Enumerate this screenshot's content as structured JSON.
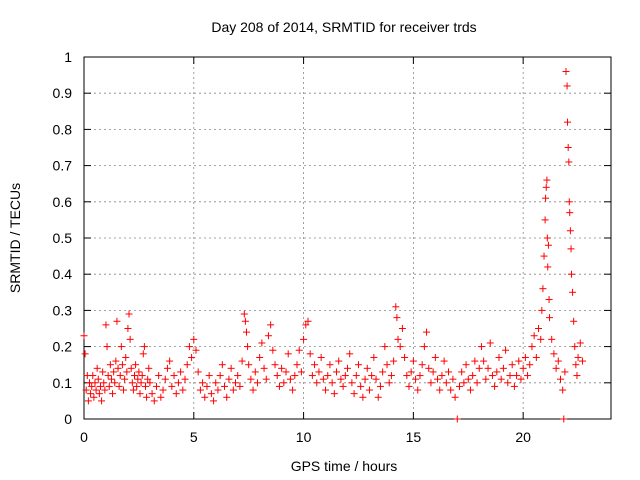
{
  "chart_data": {
    "type": "scatter",
    "title": "Day 208 of 2014, SRMTID for receiver trds",
    "xlabel": "GPS time / hours",
    "ylabel": "SRMTID / TECUs",
    "xlim": [
      0,
      24
    ],
    "ylim": [
      0,
      1
    ],
    "xticks": [
      0,
      5,
      10,
      15,
      20
    ],
    "xtick_labels": [
      "0",
      "5",
      "10",
      "15",
      "20"
    ],
    "yticks": [
      0,
      0.1,
      0.2,
      0.3,
      0.4,
      0.5,
      0.6,
      0.7,
      0.8,
      0.9,
      1
    ],
    "ytick_labels": [
      "0",
      "0.1",
      "0.2",
      "0.3",
      "0.4",
      "0.5",
      "0.6",
      "0.7",
      "0.8",
      "0.9",
      "1"
    ],
    "grid": true,
    "marker": "+",
    "color": "#ff0000",
    "series": [
      {
        "name": "SRMTID",
        "points": [
          [
            0.0,
            0.23
          ],
          [
            0.05,
            0.18
          ],
          [
            0.1,
            0.08
          ],
          [
            0.15,
            0.12
          ],
          [
            0.2,
            0.05
          ],
          [
            0.25,
            0.1
          ],
          [
            0.3,
            0.07
          ],
          [
            0.35,
            0.09
          ],
          [
            0.4,
            0.12
          ],
          [
            0.45,
            0.06
          ],
          [
            0.5,
            0.1
          ],
          [
            0.55,
            0.08
          ],
          [
            0.6,
            0.14
          ],
          [
            0.65,
            0.11
          ],
          [
            0.7,
            0.07
          ],
          [
            0.75,
            0.09
          ],
          [
            0.8,
            0.05
          ],
          [
            0.85,
            0.13
          ],
          [
            0.9,
            0.1
          ],
          [
            0.95,
            0.08
          ],
          [
            1.0,
            0.26
          ],
          [
            1.05,
            0.2
          ],
          [
            1.1,
            0.12
          ],
          [
            1.15,
            0.09
          ],
          [
            1.2,
            0.15
          ],
          [
            1.25,
            0.11
          ],
          [
            1.3,
            0.07
          ],
          [
            1.35,
            0.13
          ],
          [
            1.4,
            0.1
          ],
          [
            1.45,
            0.16
          ],
          [
            1.5,
            0.27
          ],
          [
            1.55,
            0.14
          ],
          [
            1.6,
            0.09
          ],
          [
            1.65,
            0.12
          ],
          [
            1.7,
            0.2
          ],
          [
            1.75,
            0.15
          ],
          [
            1.8,
            0.08
          ],
          [
            1.85,
            0.11
          ],
          [
            1.9,
            0.17
          ],
          [
            1.95,
            0.13
          ],
          [
            2.0,
            0.25
          ],
          [
            2.05,
            0.29
          ],
          [
            2.1,
            0.22
          ],
          [
            2.15,
            0.14
          ],
          [
            2.2,
            0.1
          ],
          [
            2.25,
            0.08
          ],
          [
            2.3,
            0.12
          ],
          [
            2.35,
            0.15
          ],
          [
            2.4,
            0.09
          ],
          [
            2.45,
            0.11
          ],
          [
            2.5,
            0.13
          ],
          [
            2.55,
            0.07
          ],
          [
            2.6,
            0.1
          ],
          [
            2.65,
            0.12
          ],
          [
            2.7,
            0.18
          ],
          [
            2.75,
            0.2
          ],
          [
            2.8,
            0.09
          ],
          [
            2.85,
            0.06
          ],
          [
            2.9,
            0.11
          ],
          [
            2.95,
            0.14
          ],
          [
            3.0,
            0.1
          ],
          [
            3.1,
            0.07
          ],
          [
            3.2,
            0.05
          ],
          [
            3.3,
            0.09
          ],
          [
            3.4,
            0.12
          ],
          [
            3.5,
            0.06
          ],
          [
            3.6,
            0.08
          ],
          [
            3.7,
            0.11
          ],
          [
            3.8,
            0.14
          ],
          [
            3.9,
            0.16
          ],
          [
            4.0,
            0.09
          ],
          [
            4.1,
            0.12
          ],
          [
            4.2,
            0.07
          ],
          [
            4.3,
            0.1
          ],
          [
            4.4,
            0.13
          ],
          [
            4.5,
            0.08
          ],
          [
            4.6,
            0.11
          ],
          [
            4.7,
            0.15
          ],
          [
            4.8,
            0.2
          ],
          [
            4.9,
            0.17
          ],
          [
            5.0,
            0.22
          ],
          [
            5.1,
            0.19
          ],
          [
            5.2,
            0.13
          ],
          [
            5.3,
            0.08
          ],
          [
            5.4,
            0.1
          ],
          [
            5.5,
            0.06
          ],
          [
            5.6,
            0.09
          ],
          [
            5.7,
            0.12
          ],
          [
            5.8,
            0.07
          ],
          [
            5.9,
            0.05
          ],
          [
            6.0,
            0.1
          ],
          [
            6.1,
            0.08
          ],
          [
            6.2,
            0.12
          ],
          [
            6.3,
            0.15
          ],
          [
            6.4,
            0.09
          ],
          [
            6.5,
            0.06
          ],
          [
            6.6,
            0.11
          ],
          [
            6.7,
            0.14
          ],
          [
            6.8,
            0.08
          ],
          [
            6.9,
            0.1
          ],
          [
            7.0,
            0.12
          ],
          [
            7.1,
            0.09
          ],
          [
            7.2,
            0.16
          ],
          [
            7.3,
            0.29
          ],
          [
            7.35,
            0.27
          ],
          [
            7.4,
            0.24
          ],
          [
            7.45,
            0.2
          ],
          [
            7.5,
            0.15
          ],
          [
            7.6,
            0.11
          ],
          [
            7.7,
            0.08
          ],
          [
            7.8,
            0.13
          ],
          [
            7.9,
            0.1
          ],
          [
            8.0,
            0.17
          ],
          [
            8.1,
            0.21
          ],
          [
            8.2,
            0.14
          ],
          [
            8.3,
            0.11
          ],
          [
            8.4,
            0.23
          ],
          [
            8.5,
            0.26
          ],
          [
            8.6,
            0.19
          ],
          [
            8.7,
            0.15
          ],
          [
            8.8,
            0.12
          ],
          [
            8.9,
            0.09
          ],
          [
            9.0,
            0.14
          ],
          [
            9.1,
            0.1
          ],
          [
            9.2,
            0.13
          ],
          [
            9.3,
            0.18
          ],
          [
            9.4,
            0.11
          ],
          [
            9.5,
            0.08
          ],
          [
            9.6,
            0.12
          ],
          [
            9.7,
            0.15
          ],
          [
            9.8,
            0.19
          ],
          [
            9.9,
            0.13
          ],
          [
            10.0,
            0.22
          ],
          [
            10.1,
            0.26
          ],
          [
            10.2,
            0.27
          ],
          [
            10.3,
            0.18
          ],
          [
            10.4,
            0.12
          ],
          [
            10.5,
            0.15
          ],
          [
            10.6,
            0.1
          ],
          [
            10.7,
            0.13
          ],
          [
            10.8,
            0.17
          ],
          [
            10.9,
            0.11
          ],
          [
            11.0,
            0.08
          ],
          [
            11.1,
            0.12
          ],
          [
            11.2,
            0.15
          ],
          [
            11.3,
            0.1
          ],
          [
            11.4,
            0.07
          ],
          [
            11.5,
            0.13
          ],
          [
            11.6,
            0.16
          ],
          [
            11.7,
            0.11
          ],
          [
            11.8,
            0.09
          ],
          [
            11.9,
            0.12
          ],
          [
            12.0,
            0.14
          ],
          [
            12.1,
            0.18
          ],
          [
            12.2,
            0.1
          ],
          [
            12.3,
            0.07
          ],
          [
            12.4,
            0.12
          ],
          [
            12.5,
            0.15
          ],
          [
            12.6,
            0.09
          ],
          [
            12.7,
            0.06
          ],
          [
            12.8,
            0.11
          ],
          [
            12.9,
            0.14
          ],
          [
            13.0,
            0.08
          ],
          [
            13.1,
            0.12
          ],
          [
            13.2,
            0.17
          ],
          [
            13.3,
            0.11
          ],
          [
            13.4,
            0.06
          ],
          [
            13.5,
            0.09
          ],
          [
            13.6,
            0.13
          ],
          [
            13.7,
            0.2
          ],
          [
            13.8,
            0.15
          ],
          [
            13.9,
            0.1
          ],
          [
            14.0,
            0.12
          ],
          [
            14.1,
            0.16
          ],
          [
            14.2,
            0.31
          ],
          [
            14.25,
            0.28
          ],
          [
            14.3,
            0.22
          ],
          [
            14.4,
            0.2
          ],
          [
            14.5,
            0.25
          ],
          [
            14.6,
            0.17
          ],
          [
            14.7,
            0.12
          ],
          [
            14.8,
            0.09
          ],
          [
            14.9,
            0.13
          ],
          [
            15.0,
            0.16
          ],
          [
            15.1,
            0.11
          ],
          [
            15.2,
            0.08
          ],
          [
            15.3,
            0.12
          ],
          [
            15.4,
            0.15
          ],
          [
            15.5,
            0.2
          ],
          [
            15.6,
            0.24
          ],
          [
            15.7,
            0.14
          ],
          [
            15.8,
            0.1
          ],
          [
            15.9,
            0.13
          ],
          [
            16.0,
            0.17
          ],
          [
            16.1,
            0.11
          ],
          [
            16.2,
            0.08
          ],
          [
            16.3,
            0.12
          ],
          [
            16.4,
            0.16
          ],
          [
            16.5,
            0.1
          ],
          [
            16.6,
            0.13
          ],
          [
            16.7,
            0.08
          ],
          [
            16.8,
            0.11
          ],
          [
            16.9,
            0.06
          ],
          [
            17.0,
            0.0
          ],
          [
            17.1,
            0.09
          ],
          [
            17.2,
            0.13
          ],
          [
            17.3,
            0.1
          ],
          [
            17.4,
            0.15
          ],
          [
            17.5,
            0.11
          ],
          [
            17.6,
            0.08
          ],
          [
            17.7,
            0.12
          ],
          [
            17.8,
            0.16
          ],
          [
            17.9,
            0.1
          ],
          [
            18.0,
            0.14
          ],
          [
            18.1,
            0.2
          ],
          [
            18.2,
            0.16
          ],
          [
            18.3,
            0.11
          ],
          [
            18.4,
            0.14
          ],
          [
            18.5,
            0.21
          ],
          [
            18.6,
            0.12
          ],
          [
            18.7,
            0.09
          ],
          [
            18.8,
            0.13
          ],
          [
            18.9,
            0.17
          ],
          [
            19.0,
            0.11
          ],
          [
            19.1,
            0.14
          ],
          [
            19.2,
            0.19
          ],
          [
            19.3,
            0.1
          ],
          [
            19.4,
            0.12
          ],
          [
            19.5,
            0.15
          ],
          [
            19.6,
            0.09
          ],
          [
            19.7,
            0.12
          ],
          [
            19.8,
            0.16
          ],
          [
            19.9,
            0.11
          ],
          [
            20.0,
            0.14
          ],
          [
            20.1,
            0.17
          ],
          [
            20.2,
            0.12
          ],
          [
            20.3,
            0.15
          ],
          [
            20.4,
            0.2
          ],
          [
            20.5,
            0.23
          ],
          [
            20.6,
            0.17
          ],
          [
            20.7,
            0.25
          ],
          [
            20.8,
            0.22
          ],
          [
            20.85,
            0.3
          ],
          [
            20.9,
            0.36
          ],
          [
            20.95,
            0.45
          ],
          [
            21.0,
            0.55
          ],
          [
            21.02,
            0.61
          ],
          [
            21.05,
            0.64
          ],
          [
            21.08,
            0.66
          ],
          [
            21.1,
            0.5
          ],
          [
            21.12,
            0.42
          ],
          [
            21.15,
            0.48
          ],
          [
            21.18,
            0.33
          ],
          [
            21.2,
            0.28
          ],
          [
            21.3,
            0.22
          ],
          [
            21.4,
            0.18
          ],
          [
            21.5,
            0.14
          ],
          [
            21.6,
            0.16
          ],
          [
            21.7,
            0.11
          ],
          [
            21.8,
            0.08
          ],
          [
            21.85,
            0.0
          ],
          [
            21.9,
            0.13
          ],
          [
            21.95,
            0.96
          ],
          [
            22.0,
            0.92
          ],
          [
            22.02,
            0.82
          ],
          [
            22.05,
            0.75
          ],
          [
            22.08,
            0.71
          ],
          [
            22.1,
            0.6
          ],
          [
            22.12,
            0.57
          ],
          [
            22.15,
            0.52
          ],
          [
            22.18,
            0.47
          ],
          [
            22.2,
            0.4
          ],
          [
            22.25,
            0.35
          ],
          [
            22.3,
            0.27
          ],
          [
            22.35,
            0.2
          ],
          [
            22.4,
            0.15
          ],
          [
            22.45,
            0.12
          ],
          [
            22.5,
            0.17
          ],
          [
            22.6,
            0.21
          ],
          [
            22.7,
            0.16
          ]
        ]
      }
    ]
  }
}
